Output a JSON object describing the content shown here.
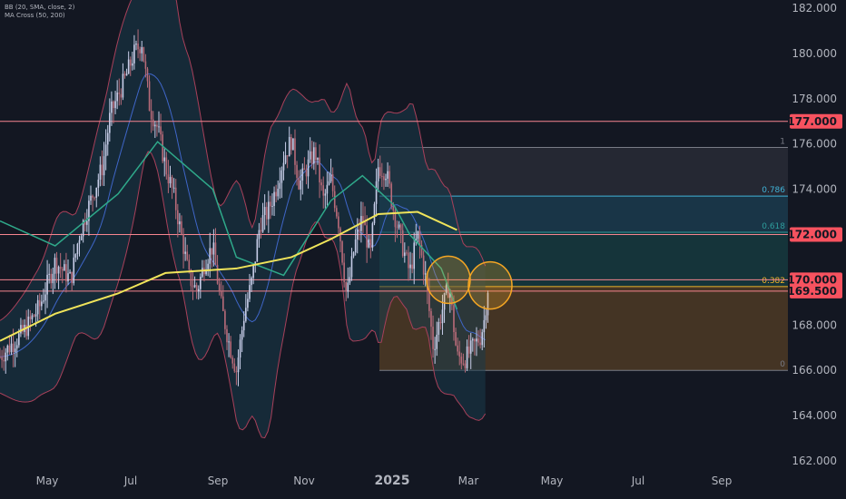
{
  "indicators": {
    "bb_label": "BB (20, SMA, close, 2)",
    "ma_label": "MA Cross (50, 200)"
  },
  "colors": {
    "background": "#131722",
    "up_candle": "#c7cde8",
    "down_candle": "#b86b79",
    "bb_band": "#a8405a",
    "bb_basis": "#3f66c8",
    "bb_fill": "#1a3a4a",
    "ma50": "#2fa98a",
    "ma200": "#f0e45a",
    "hline": "#f7858f",
    "hline_badge": "#f7525f",
    "fib_1": "#787b86",
    "fib_0786": "#40b3d8",
    "fib_0618": "#2e9c9c",
    "fib_0382": "#f0b429",
    "fib_0": "#787b86",
    "circle": "#f5a623",
    "axis_text": "#b2b5be"
  },
  "chart_data": {
    "type": "candlestick",
    "y_axis": {
      "range": [
        162,
        182
      ],
      "ticks": [
        "182.000",
        "180.000",
        "178.000",
        "176.000",
        "174.000",
        "172.000",
        "170.000",
        "168.000",
        "166.000",
        "164.000",
        "162.000"
      ],
      "tick_values": [
        182,
        180,
        178,
        176,
        174,
        172,
        170,
        168,
        166,
        164,
        162
      ]
    },
    "x_axis": {
      "labels": [
        "May",
        "Jul",
        "Sep",
        "Nov",
        "2025",
        "Mar",
        "May",
        "Jul",
        "Sep"
      ],
      "bold_label": "2025"
    },
    "horizontal_lines": [
      {
        "value": 177.0,
        "label": "177.000"
      },
      {
        "value": 172.0,
        "label": "172.000"
      },
      {
        "value": 170.0,
        "label": "170.000"
      },
      {
        "value": 169.5,
        "label": "169.500"
      }
    ],
    "fibonacci": {
      "from": "early Jan 2025",
      "to": "Sep 2025",
      "levels": [
        {
          "ratio": 1,
          "label": "1",
          "value": 175.85
        },
        {
          "ratio": 0.786,
          "label": "0.786",
          "value": 173.7
        },
        {
          "ratio": 0.618,
          "label": "0.618",
          "value": 172.1
        },
        {
          "ratio": 0.382,
          "label": "0.382",
          "value": 169.7
        },
        {
          "ratio": 0,
          "label": "0",
          "value": 166.0
        }
      ]
    },
    "ma50_sample": [
      [
        0,
        172.6
      ],
      [
        0.07,
        171.5
      ],
      [
        0.15,
        173.8
      ],
      [
        0.2,
        176.1
      ],
      [
        0.27,
        174.0
      ],
      [
        0.3,
        171.0
      ],
      [
        0.36,
        170.2
      ],
      [
        0.42,
        173.5
      ],
      [
        0.46,
        174.6
      ],
      [
        0.5,
        173.3
      ],
      [
        0.52,
        172.0
      ],
      [
        0.56,
        170.5
      ],
      [
        0.58,
        168.7
      ]
    ],
    "ma200_sample": [
      [
        0,
        167.3
      ],
      [
        0.07,
        168.5
      ],
      [
        0.15,
        169.4
      ],
      [
        0.21,
        170.3
      ],
      [
        0.3,
        170.5
      ],
      [
        0.37,
        171.0
      ],
      [
        0.42,
        171.8
      ],
      [
        0.48,
        172.9
      ],
      [
        0.53,
        173.0
      ],
      [
        0.58,
        172.2
      ]
    ],
    "annotations": [
      {
        "type": "circle",
        "near": "Feb 2025",
        "value": 170.0
      },
      {
        "type": "circle",
        "near": "Mar 2025",
        "value": 169.8
      }
    ]
  }
}
